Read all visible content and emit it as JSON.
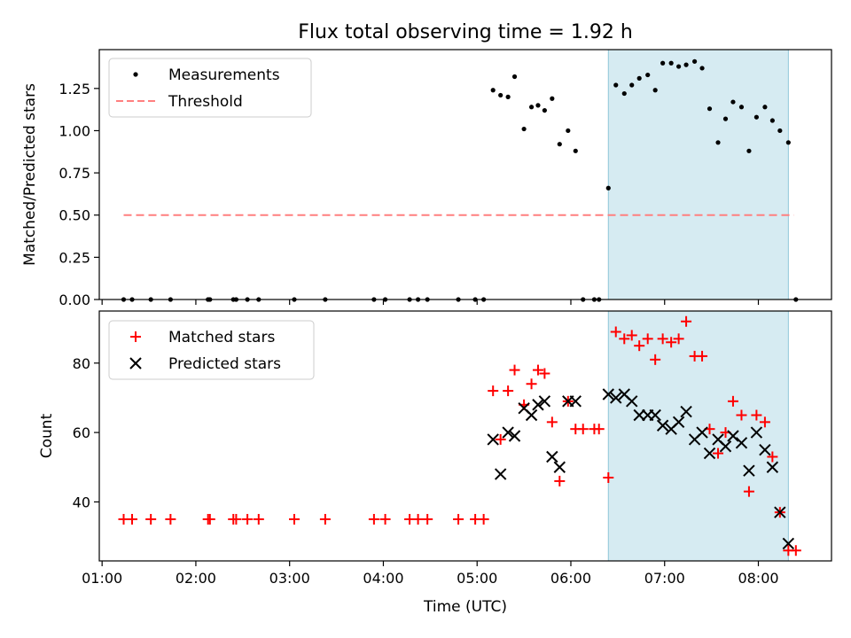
{
  "title": "Flux total observing time = 1.92 h",
  "colors": {
    "measurement": "#000000",
    "threshold": "#ff7f7f",
    "matched": "#ff0000",
    "predicted": "#000000",
    "shade": "#add8e6"
  },
  "chart_data": [
    {
      "type": "scatter",
      "ylabel": "Matched/Predicted stars",
      "xlabel": "",
      "xlim": [
        0.97,
        8.78
      ],
      "ylim": [
        0,
        1.48
      ],
      "yticks": [
        "0.00",
        "0.25",
        "0.50",
        "0.75",
        "1.00",
        "1.25"
      ],
      "ytick_values": [
        0,
        0.25,
        0.5,
        0.75,
        1.0,
        1.25
      ],
      "legend_position": "top-left",
      "shaded_region": {
        "x": [
          6.4,
          8.32
        ]
      },
      "threshold": {
        "name": "Threshold",
        "y": 0.5,
        "x": [
          1.23,
          8.38
        ]
      },
      "series": [
        {
          "name": "Measurements",
          "marker": "dot",
          "points": [
            [
              1.23,
              0
            ],
            [
              1.32,
              0
            ],
            [
              1.52,
              0
            ],
            [
              1.73,
              0
            ],
            [
              2.13,
              0
            ],
            [
              2.15,
              0
            ],
            [
              2.4,
              0
            ],
            [
              2.43,
              0
            ],
            [
              2.55,
              0
            ],
            [
              2.67,
              0
            ],
            [
              3.05,
              0
            ],
            [
              3.38,
              0
            ],
            [
              3.9,
              0
            ],
            [
              4.02,
              0
            ],
            [
              4.28,
              0
            ],
            [
              4.37,
              0
            ],
            [
              4.47,
              0
            ],
            [
              4.8,
              0
            ],
            [
              4.98,
              0
            ],
            [
              5.07,
              0
            ],
            [
              5.17,
              1.24
            ],
            [
              5.25,
              1.21
            ],
            [
              5.33,
              1.2
            ],
            [
              5.4,
              1.32
            ],
            [
              5.5,
              1.01
            ],
            [
              5.58,
              1.14
            ],
            [
              5.65,
              1.15
            ],
            [
              5.72,
              1.12
            ],
            [
              5.8,
              1.19
            ],
            [
              5.88,
              0.92
            ],
            [
              5.97,
              1.0
            ],
            [
              6.05,
              0.88
            ],
            [
              6.13,
              0
            ],
            [
              6.25,
              0
            ],
            [
              6.3,
              0
            ],
            [
              6.4,
              0.66
            ],
            [
              6.48,
              1.27
            ],
            [
              6.57,
              1.22
            ],
            [
              6.65,
              1.27
            ],
            [
              6.73,
              1.31
            ],
            [
              6.82,
              1.33
            ],
            [
              6.9,
              1.24
            ],
            [
              6.98,
              1.4
            ],
            [
              7.07,
              1.4
            ],
            [
              7.15,
              1.38
            ],
            [
              7.23,
              1.39
            ],
            [
              7.32,
              1.41
            ],
            [
              7.4,
              1.37
            ],
            [
              7.48,
              1.13
            ],
            [
              7.57,
              0.93
            ],
            [
              7.65,
              1.07
            ],
            [
              7.73,
              1.17
            ],
            [
              7.82,
              1.14
            ],
            [
              7.9,
              0.88
            ],
            [
              7.98,
              1.08
            ],
            [
              8.07,
              1.14
            ],
            [
              8.15,
              1.06
            ],
            [
              8.23,
              1.0
            ],
            [
              8.32,
              0.93
            ],
            [
              8.4,
              0
            ]
          ]
        }
      ]
    },
    {
      "type": "scatter",
      "ylabel": "Count",
      "xlabel": "Time (UTC)",
      "xlim": [
        0.97,
        8.78
      ],
      "ylim": [
        23,
        95
      ],
      "yticks": [
        "40",
        "60",
        "80"
      ],
      "ytick_values": [
        40,
        60,
        80
      ],
      "xticks": [
        "01:00",
        "02:00",
        "03:00",
        "04:00",
        "05:00",
        "06:00",
        "07:00",
        "08:00"
      ],
      "xtick_values": [
        1,
        2,
        3,
        4,
        5,
        6,
        7,
        8
      ],
      "legend_position": "top-left",
      "shaded_region": {
        "x": [
          6.4,
          8.32
        ]
      },
      "series": [
        {
          "name": "Matched stars",
          "marker": "plus",
          "points": [
            [
              1.23,
              35
            ],
            [
              1.32,
              35
            ],
            [
              1.52,
              35
            ],
            [
              1.73,
              35
            ],
            [
              2.13,
              35
            ],
            [
              2.15,
              35
            ],
            [
              2.4,
              35
            ],
            [
              2.43,
              35
            ],
            [
              2.55,
              35
            ],
            [
              2.67,
              35
            ],
            [
              3.05,
              35
            ],
            [
              3.38,
              35
            ],
            [
              3.9,
              35
            ],
            [
              4.02,
              35
            ],
            [
              4.28,
              35
            ],
            [
              4.37,
              35
            ],
            [
              4.47,
              35
            ],
            [
              4.8,
              35
            ],
            [
              4.98,
              35
            ],
            [
              5.07,
              35
            ],
            [
              5.17,
              72
            ],
            [
              5.25,
              58
            ],
            [
              5.33,
              72
            ],
            [
              5.4,
              78
            ],
            [
              5.5,
              68
            ],
            [
              5.58,
              74
            ],
            [
              5.65,
              78
            ],
            [
              5.72,
              77
            ],
            [
              5.8,
              63
            ],
            [
              5.88,
              46
            ],
            [
              5.97,
              69
            ],
            [
              6.05,
              61
            ],
            [
              6.13,
              61
            ],
            [
              6.25,
              61
            ],
            [
              6.3,
              61
            ],
            [
              6.4,
              47
            ],
            [
              6.48,
              89
            ],
            [
              6.57,
              87
            ],
            [
              6.65,
              88
            ],
            [
              6.73,
              85
            ],
            [
              6.82,
              87
            ],
            [
              6.9,
              81
            ],
            [
              6.98,
              87
            ],
            [
              7.07,
              86
            ],
            [
              7.15,
              87
            ],
            [
              7.23,
              92
            ],
            [
              7.32,
              82
            ],
            [
              7.4,
              82
            ],
            [
              7.48,
              61
            ],
            [
              7.57,
              54
            ],
            [
              7.65,
              60
            ],
            [
              7.73,
              69
            ],
            [
              7.82,
              65
            ],
            [
              7.9,
              43
            ],
            [
              7.98,
              65
            ],
            [
              8.07,
              63
            ],
            [
              8.15,
              53
            ],
            [
              8.23,
              37
            ],
            [
              8.32,
              26
            ],
            [
              8.4,
              26
            ]
          ]
        },
        {
          "name": "Predicted stars",
          "marker": "x",
          "points": [
            [
              5.17,
              58
            ],
            [
              5.25,
              48
            ],
            [
              5.33,
              60
            ],
            [
              5.4,
              59
            ],
            [
              5.5,
              67
            ],
            [
              5.58,
              65
            ],
            [
              5.65,
              68
            ],
            [
              5.72,
              69
            ],
            [
              5.8,
              53
            ],
            [
              5.88,
              50
            ],
            [
              5.97,
              69
            ],
            [
              6.05,
              69
            ],
            [
              6.4,
              71
            ],
            [
              6.48,
              70
            ],
            [
              6.57,
              71
            ],
            [
              6.65,
              69
            ],
            [
              6.73,
              65
            ],
            [
              6.82,
              65
            ],
            [
              6.9,
              65
            ],
            [
              6.98,
              62
            ],
            [
              7.07,
              61
            ],
            [
              7.15,
              63
            ],
            [
              7.23,
              66
            ],
            [
              7.32,
              58
            ],
            [
              7.4,
              60
            ],
            [
              7.48,
              54
            ],
            [
              7.57,
              58
            ],
            [
              7.65,
              56
            ],
            [
              7.73,
              59
            ],
            [
              7.82,
              57
            ],
            [
              7.9,
              49
            ],
            [
              7.98,
              60
            ],
            [
              8.07,
              55
            ],
            [
              8.15,
              50
            ],
            [
              8.23,
              37
            ],
            [
              8.32,
              28
            ]
          ]
        }
      ]
    }
  ]
}
